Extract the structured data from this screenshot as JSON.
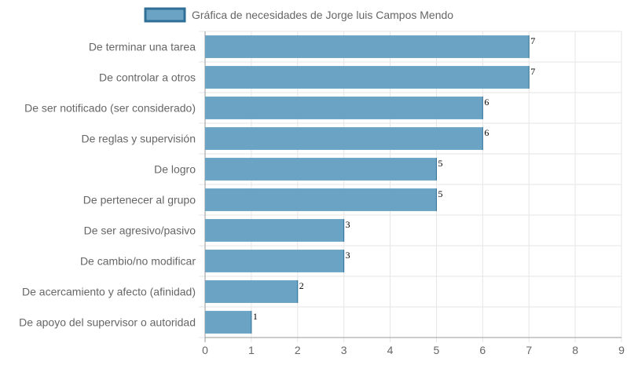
{
  "chart_data": {
    "type": "bar",
    "orientation": "horizontal",
    "legend": {
      "position": "top-center",
      "entries": [
        "Gráfica de necesidades de Jorge luis Campos Mendo"
      ]
    },
    "categories": [
      "De terminar una tarea",
      "De controlar a otros",
      "De ser notificado (ser considerado)",
      "De reglas y supervisión",
      "De logro",
      "De pertenecer al grupo",
      "De ser agresivo/pasivo",
      "De cambio/no modificar",
      "De acercamiento y afecto (afinidad)",
      "De apoyo del supervisor o autoridad"
    ],
    "series": [
      {
        "name": "Gráfica de necesidades de Jorge luis Campos Mendo",
        "values": [
          7,
          7,
          6,
          6,
          5,
          5,
          3,
          3,
          2,
          1
        ],
        "color": "#6aa3c3",
        "border_color": "#2f6f97"
      }
    ],
    "xlim": [
      0,
      9
    ],
    "x_ticks": [
      0,
      1,
      2,
      3,
      4,
      5,
      6,
      7,
      8,
      9
    ],
    "grid": true,
    "gridline_color": "#e6e6e6",
    "axis_line_color": "#999999",
    "data_labels": true
  }
}
